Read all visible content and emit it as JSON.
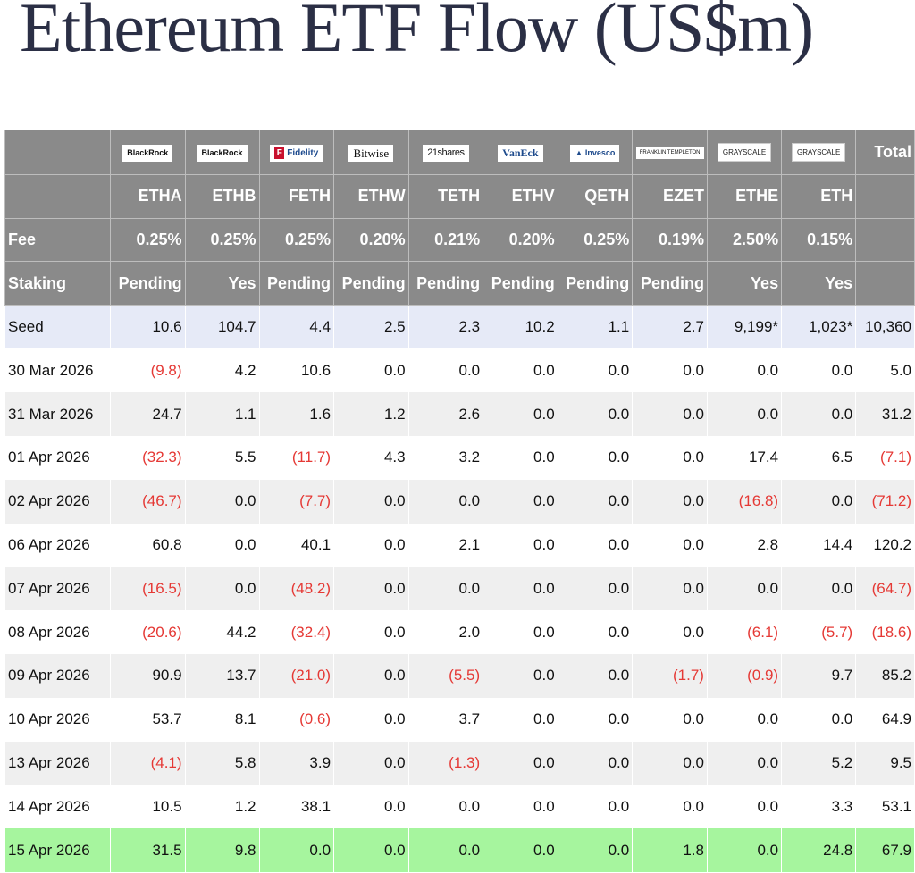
{
  "title": "Ethereum ETF Flow (US$m)",
  "header": {
    "logos": [
      {
        "text": "BlackRock",
        "icon": "blackrock-logo"
      },
      {
        "text": "BlackRock",
        "icon": "blackrock-logo"
      },
      {
        "text": "Fidelity",
        "icon": "fidelity-logo"
      },
      {
        "text": "Bitwise",
        "icon": "bitwise-logo"
      },
      {
        "text": "21shares",
        "icon": "21shares-logo"
      },
      {
        "text": "VanEck",
        "icon": "vaneck-logo"
      },
      {
        "text": "Invesco",
        "icon": "invesco-logo"
      },
      {
        "text": "FRANKLIN TEMPLETON",
        "icon": "franklin-templeton-logo"
      },
      {
        "text": "GRAYSCALE",
        "icon": "grayscale-logo"
      },
      {
        "text": "GRAYSCALE",
        "icon": "grayscale-logo"
      }
    ],
    "total_label": "Total",
    "tickers": [
      "ETHA",
      "ETHB",
      "FETH",
      "ETHW",
      "TETH",
      "ETHV",
      "QETH",
      "EZET",
      "ETHE",
      "ETH"
    ],
    "fee_label": "Fee",
    "fees": [
      "0.25%",
      "0.25%",
      "0.25%",
      "0.20%",
      "0.21%",
      "0.20%",
      "0.25%",
      "0.19%",
      "2.50%",
      "0.15%"
    ],
    "staking_label": "Staking",
    "staking": [
      "Pending",
      "Yes",
      "Pending",
      "Pending",
      "Pending",
      "Pending",
      "Pending",
      "Pending",
      "Yes",
      "Yes"
    ]
  },
  "rows": [
    {
      "label": "Seed",
      "style": "seed",
      "values": [
        "10.6",
        "104.7",
        "4.4",
        "2.5",
        "2.3",
        "10.2",
        "1.1",
        "2.7",
        "9,199*",
        "1,023*",
        "10,360"
      ]
    },
    {
      "label": "30 Mar 2026",
      "style": "odd",
      "values": [
        "(9.8)",
        "4.2",
        "10.6",
        "0.0",
        "0.0",
        "0.0",
        "0.0",
        "0.0",
        "0.0",
        "0.0",
        "5.0"
      ]
    },
    {
      "label": "31 Mar 2026",
      "style": "even",
      "values": [
        "24.7",
        "1.1",
        "1.6",
        "1.2",
        "2.6",
        "0.0",
        "0.0",
        "0.0",
        "0.0",
        "0.0",
        "31.2"
      ]
    },
    {
      "label": "01 Apr 2026",
      "style": "odd",
      "values": [
        "(32.3)",
        "5.5",
        "(11.7)",
        "4.3",
        "3.2",
        "0.0",
        "0.0",
        "0.0",
        "17.4",
        "6.5",
        "(7.1)"
      ]
    },
    {
      "label": "02 Apr 2026",
      "style": "even",
      "values": [
        "(46.7)",
        "0.0",
        "(7.7)",
        "0.0",
        "0.0",
        "0.0",
        "0.0",
        "0.0",
        "(16.8)",
        "0.0",
        "(71.2)"
      ]
    },
    {
      "label": "06 Apr 2026",
      "style": "odd",
      "values": [
        "60.8",
        "0.0",
        "40.1",
        "0.0",
        "2.1",
        "0.0",
        "0.0",
        "0.0",
        "2.8",
        "14.4",
        "120.2"
      ]
    },
    {
      "label": "07 Apr 2026",
      "style": "even",
      "values": [
        "(16.5)",
        "0.0",
        "(48.2)",
        "0.0",
        "0.0",
        "0.0",
        "0.0",
        "0.0",
        "0.0",
        "0.0",
        "(64.7)"
      ]
    },
    {
      "label": "08 Apr 2026",
      "style": "odd",
      "values": [
        "(20.6)",
        "44.2",
        "(32.4)",
        "0.0",
        "2.0",
        "0.0",
        "0.0",
        "0.0",
        "(6.1)",
        "(5.7)",
        "(18.6)"
      ]
    },
    {
      "label": "09 Apr 2026",
      "style": "even",
      "values": [
        "90.9",
        "13.7",
        "(21.0)",
        "0.0",
        "(5.5)",
        "0.0",
        "0.0",
        "(1.7)",
        "(0.9)",
        "9.7",
        "85.2"
      ]
    },
    {
      "label": "10 Apr 2026",
      "style": "odd",
      "values": [
        "53.7",
        "8.1",
        "(0.6)",
        "0.0",
        "3.7",
        "0.0",
        "0.0",
        "0.0",
        "0.0",
        "0.0",
        "64.9"
      ]
    },
    {
      "label": "13 Apr 2026",
      "style": "even",
      "values": [
        "(4.1)",
        "5.8",
        "3.9",
        "0.0",
        "(1.3)",
        "0.0",
        "0.0",
        "0.0",
        "0.0",
        "5.2",
        "9.5"
      ]
    },
    {
      "label": "14 Apr 2026",
      "style": "odd",
      "values": [
        "10.5",
        "1.2",
        "38.1",
        "0.0",
        "0.0",
        "0.0",
        "0.0",
        "0.0",
        "0.0",
        "3.3",
        "53.1"
      ]
    },
    {
      "label": "15 Apr 2026",
      "style": "last",
      "values": [
        "31.5",
        "9.8",
        "0.0",
        "0.0",
        "0.0",
        "0.0",
        "0.0",
        "1.8",
        "0.0",
        "24.8",
        "67.9"
      ]
    }
  ],
  "colors": {
    "header_bg": "#8a8a8a",
    "seed_bg": "#e6eaf7",
    "alt_row_bg": "#efefef",
    "latest_row_bg": "#a6f59e",
    "negative": "#e53935",
    "title": "#2b2f45"
  }
}
